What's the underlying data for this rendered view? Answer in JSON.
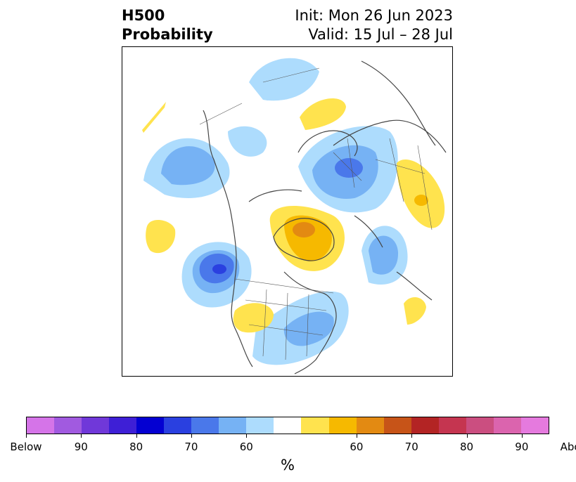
{
  "title": {
    "left_line1": "H500",
    "left_line2": "Probability",
    "right_line1": "Init: Mon 26 Jun 2023",
    "right_line2": "Valid: 15 Jul – 28 Jul"
  },
  "colorbar": {
    "colors": [
      "#d574e8",
      "#a15ae0",
      "#7038d9",
      "#3e1fd6",
      "#0400d2",
      "#2a40e0",
      "#4a78ea",
      "#76b2f4",
      "#addcfd",
      "#ffffff",
      "#ffe34e",
      "#f6b900",
      "#e38a12",
      "#c75418",
      "#b32424",
      "#c53550",
      "#cb4e80",
      "#db64ae",
      "#e57ade"
    ],
    "tick_labels": [
      "Below",
      "90",
      "80",
      "70",
      "60",
      "60",
      "70",
      "80",
      "90",
      "Above"
    ],
    "unit": "%"
  },
  "legend_colors": {
    "light_blue": "#addcfd",
    "mid_blue": "#76b2f4",
    "blue": "#4a78ea",
    "deep_blue": "#2a40e0",
    "yellow": "#ffe34e",
    "gold": "#f6b900",
    "orange": "#e38a12",
    "coast": "#444444"
  }
}
